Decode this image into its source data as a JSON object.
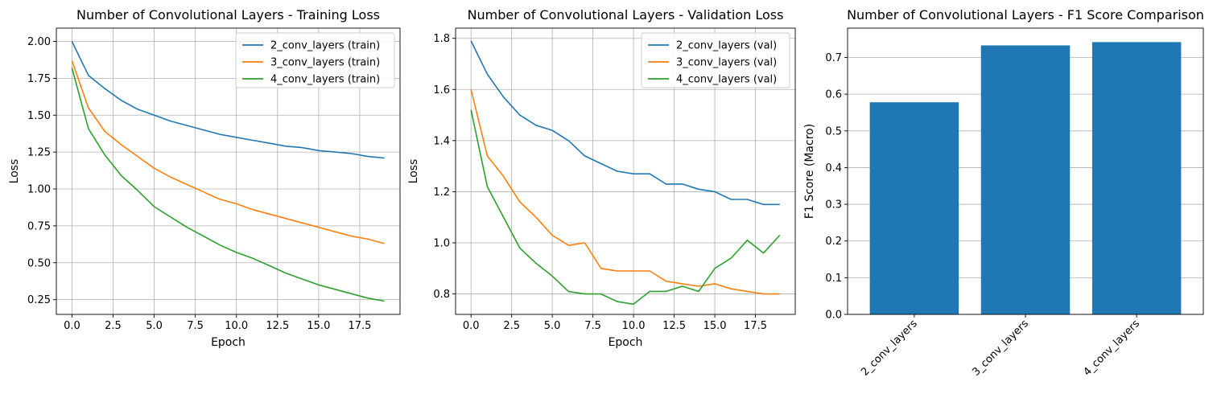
{
  "chart_data": [
    {
      "type": "line",
      "title": "Number of Convolutional Layers - Training Loss",
      "xlabel": "Epoch",
      "ylabel": "Loss",
      "xlim": [
        -0.95,
        19.95
      ],
      "ylim": [
        0.15,
        2.09
      ],
      "xticks": [
        0,
        2.5,
        5,
        7.5,
        10,
        12.5,
        15,
        17.5
      ],
      "xtick_labels": [
        "0.0",
        "2.5",
        "5.0",
        "7.5",
        "10.0",
        "12.5",
        "15.0",
        "17.5"
      ],
      "yticks": [
        0.25,
        0.5,
        0.75,
        1.0,
        1.25,
        1.5,
        1.75,
        2.0
      ],
      "ytick_labels": [
        "0.25",
        "0.50",
        "0.75",
        "1.00",
        "1.25",
        "1.50",
        "1.75",
        "2.00"
      ],
      "grid": true,
      "legend": "top-right",
      "x": [
        0,
        1,
        2,
        3,
        4,
        5,
        6,
        7,
        8,
        9,
        10,
        11,
        12,
        13,
        14,
        15,
        16,
        17,
        18,
        19
      ],
      "series": [
        {
          "name": "2_conv_layers (train)",
          "color": "#1f77b4",
          "values": [
            2.0,
            1.77,
            1.68,
            1.6,
            1.54,
            1.5,
            1.46,
            1.43,
            1.4,
            1.37,
            1.35,
            1.33,
            1.31,
            1.29,
            1.28,
            1.26,
            1.25,
            1.24,
            1.22,
            1.21
          ]
        },
        {
          "name": "3_conv_layers (train)",
          "color": "#ff7f0e",
          "values": [
            1.87,
            1.55,
            1.39,
            1.3,
            1.22,
            1.14,
            1.08,
            1.03,
            0.98,
            0.93,
            0.9,
            0.86,
            0.83,
            0.8,
            0.77,
            0.74,
            0.71,
            0.68,
            0.66,
            0.63
          ]
        },
        {
          "name": "4_conv_layers (train)",
          "color": "#2ca02c",
          "values": [
            1.82,
            1.41,
            1.23,
            1.09,
            0.99,
            0.88,
            0.81,
            0.74,
            0.68,
            0.62,
            0.57,
            0.53,
            0.48,
            0.43,
            0.39,
            0.35,
            0.32,
            0.29,
            0.26,
            0.24
          ]
        }
      ]
    },
    {
      "type": "line",
      "title": "Number of Convolutional Layers - Validation Loss",
      "xlabel": "Epoch",
      "ylabel": "Loss",
      "xlim": [
        -0.95,
        19.95
      ],
      "ylim": [
        0.72,
        1.84
      ],
      "xticks": [
        0,
        2.5,
        5,
        7.5,
        10,
        12.5,
        15,
        17.5
      ],
      "xtick_labels": [
        "0.0",
        "2.5",
        "5.0",
        "7.5",
        "10.0",
        "12.5",
        "15.0",
        "17.5"
      ],
      "yticks": [
        0.8,
        1.0,
        1.2,
        1.4,
        1.6,
        1.8
      ],
      "ytick_labels": [
        "0.8",
        "1.0",
        "1.2",
        "1.4",
        "1.6",
        "1.8"
      ],
      "grid": true,
      "legend": "top-right",
      "x": [
        0,
        1,
        2,
        3,
        4,
        5,
        6,
        7,
        8,
        9,
        10,
        11,
        12,
        13,
        14,
        15,
        16,
        17,
        18,
        19
      ],
      "series": [
        {
          "name": "2_conv_layers (val)",
          "color": "#1f77b4",
          "values": [
            1.79,
            1.66,
            1.57,
            1.5,
            1.46,
            1.44,
            1.4,
            1.34,
            1.31,
            1.28,
            1.27,
            1.27,
            1.23,
            1.23,
            1.21,
            1.2,
            1.17,
            1.17,
            1.15,
            1.15
          ]
        },
        {
          "name": "3_conv_layers (val)",
          "color": "#ff7f0e",
          "values": [
            1.6,
            1.34,
            1.26,
            1.16,
            1.1,
            1.03,
            0.99,
            1.0,
            0.9,
            0.89,
            0.89,
            0.89,
            0.85,
            0.84,
            0.83,
            0.84,
            0.82,
            0.81,
            0.8,
            0.8
          ]
        },
        {
          "name": "4_conv_layers (val)",
          "color": "#2ca02c",
          "values": [
            1.52,
            1.22,
            1.1,
            0.98,
            0.92,
            0.87,
            0.81,
            0.8,
            0.8,
            0.77,
            0.76,
            0.81,
            0.81,
            0.83,
            0.81,
            0.9,
            0.94,
            1.01,
            0.96,
            1.03
          ]
        }
      ]
    },
    {
      "type": "bar",
      "title": "Number of Convolutional Layers - F1 Score Comparison",
      "xlabel": "",
      "ylabel": "F1 Score (Macro)",
      "ylim": [
        0,
        0.78
      ],
      "yticks": [
        0.0,
        0.1,
        0.2,
        0.3,
        0.4,
        0.5,
        0.6,
        0.7
      ],
      "ytick_labels": [
        "0.0",
        "0.1",
        "0.2",
        "0.3",
        "0.4",
        "0.5",
        "0.6",
        "0.7"
      ],
      "grid": "y",
      "color": "#1f77b4",
      "categories": [
        "2_conv_layers",
        "3_conv_layers",
        "4_conv_layers"
      ],
      "values": [
        0.578,
        0.733,
        0.742
      ]
    }
  ]
}
